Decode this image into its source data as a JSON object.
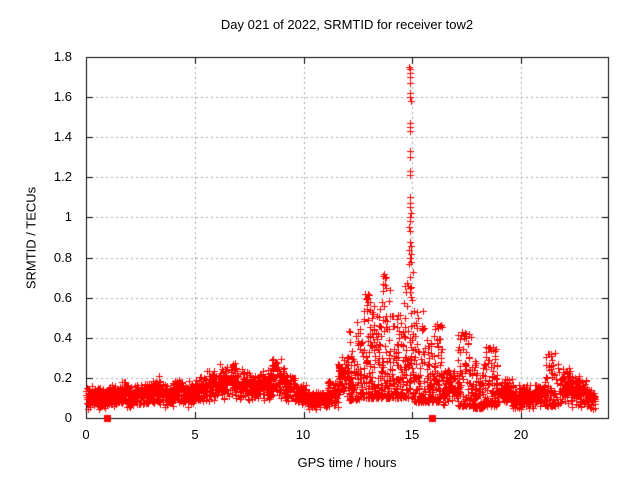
{
  "chart_data": {
    "type": "scatter",
    "title": "Day 021 of 2022, SRMTID for receiver tow2",
    "xlabel": "GPS time / hours",
    "ylabel": "SRMTID / TECUs",
    "xlim": [
      0,
      24
    ],
    "ylim": [
      0,
      1.8
    ],
    "xticks": [
      0,
      5,
      10,
      15,
      20
    ],
    "yticks": [
      0,
      0.2,
      0.4,
      0.6,
      0.8,
      1,
      1.2,
      1.4,
      1.6,
      1.8
    ],
    "xtick_labels": [
      "0",
      "5",
      "10",
      "15",
      "20"
    ],
    "ytick_labels": [
      "0",
      "0.2",
      "0.4",
      "0.6",
      "0.8",
      "1",
      "1.2",
      "1.4",
      "1.6",
      "1.8"
    ],
    "grid": true,
    "legend": "none",
    "colors": {
      "points": "#ff0000",
      "grid": "#a8a8a8",
      "frame": "#000000",
      "text": "#000000",
      "background": "#ffffff"
    },
    "seed": 20220121,
    "series": [
      {
        "name": "SRMTID",
        "marker": "plus",
        "envelope_bins_format": [
          "hour_start",
          "hour_end",
          "y_min",
          "y_max",
          "n_points"
        ],
        "envelope_bins": [
          [
            0.0,
            0.5,
            0.04,
            0.17,
            70
          ],
          [
            0.5,
            1.0,
            0.04,
            0.16,
            70
          ],
          [
            1.0,
            1.5,
            0.05,
            0.17,
            70
          ],
          [
            1.5,
            2.0,
            0.05,
            0.19,
            70
          ],
          [
            2.0,
            2.5,
            0.05,
            0.17,
            70
          ],
          [
            2.5,
            3.0,
            0.06,
            0.18,
            70
          ],
          [
            3.0,
            3.5,
            0.06,
            0.22,
            70
          ],
          [
            3.5,
            4.0,
            0.05,
            0.18,
            70
          ],
          [
            4.0,
            4.5,
            0.06,
            0.21,
            70
          ],
          [
            4.5,
            5.0,
            0.05,
            0.19,
            70
          ],
          [
            5.0,
            5.5,
            0.07,
            0.21,
            70
          ],
          [
            5.5,
            6.0,
            0.07,
            0.25,
            70
          ],
          [
            6.0,
            6.5,
            0.08,
            0.29,
            70
          ],
          [
            6.5,
            7.0,
            0.09,
            0.3,
            70
          ],
          [
            7.0,
            7.5,
            0.08,
            0.26,
            70
          ],
          [
            7.5,
            8.0,
            0.08,
            0.23,
            70
          ],
          [
            8.0,
            8.5,
            0.08,
            0.26,
            70
          ],
          [
            8.5,
            9.1,
            0.09,
            0.31,
            80
          ],
          [
            9.1,
            9.6,
            0.07,
            0.22,
            70
          ],
          [
            9.6,
            10.1,
            0.06,
            0.18,
            70
          ],
          [
            10.1,
            10.6,
            0.04,
            0.15,
            70
          ],
          [
            10.6,
            11.1,
            0.04,
            0.14,
            70
          ],
          [
            11.1,
            11.6,
            0.05,
            0.19,
            70
          ],
          [
            11.6,
            12.1,
            0.07,
            0.32,
            70
          ],
          [
            12.1,
            12.6,
            0.09,
            0.48,
            75
          ],
          [
            12.6,
            13.1,
            0.1,
            0.62,
            80
          ],
          [
            13.1,
            13.6,
            0.1,
            0.56,
            80
          ],
          [
            13.6,
            14.1,
            0.1,
            0.72,
            80
          ],
          [
            14.1,
            14.6,
            0.1,
            0.52,
            75
          ],
          [
            14.6,
            15.05,
            0.1,
            0.76,
            70
          ],
          [
            15.05,
            15.55,
            0.08,
            0.54,
            70
          ],
          [
            15.55,
            16.0,
            0.08,
            0.4,
            65
          ],
          [
            16.0,
            16.4,
            0.08,
            0.48,
            55
          ],
          [
            16.4,
            17.1,
            0.05,
            0.26,
            90
          ],
          [
            17.1,
            17.7,
            0.06,
            0.44,
            80
          ],
          [
            17.7,
            18.25,
            0.05,
            0.31,
            75
          ],
          [
            18.25,
            18.95,
            0.06,
            0.36,
            95
          ],
          [
            18.95,
            19.6,
            0.05,
            0.2,
            85
          ],
          [
            19.6,
            20.6,
            0.04,
            0.17,
            135
          ],
          [
            20.6,
            21.1,
            0.05,
            0.19,
            70
          ],
          [
            21.1,
            21.75,
            0.06,
            0.33,
            90
          ],
          [
            21.75,
            22.35,
            0.05,
            0.26,
            80
          ],
          [
            22.35,
            23.0,
            0.04,
            0.22,
            90
          ],
          [
            23.0,
            23.4,
            0.04,
            0.15,
            55
          ]
        ],
        "high_points": [
          [
            14.87,
            1.75
          ],
          [
            14.9,
            1.74
          ],
          [
            14.88,
            1.72
          ],
          [
            14.91,
            1.7
          ],
          [
            14.89,
            1.67
          ],
          [
            14.88,
            1.62
          ],
          [
            14.9,
            1.6
          ],
          [
            14.92,
            1.58
          ],
          [
            14.88,
            1.47
          ],
          [
            14.91,
            1.45
          ],
          [
            14.9,
            1.43
          ],
          [
            14.89,
            1.33
          ],
          [
            14.9,
            1.3
          ],
          [
            14.88,
            1.23
          ],
          [
            14.91,
            1.21
          ],
          [
            14.9,
            1.1
          ],
          [
            14.89,
            1.07
          ],
          [
            14.9,
            1.05
          ],
          [
            14.92,
            1.02
          ],
          [
            14.88,
            1.0
          ],
          [
            14.9,
            0.98
          ],
          [
            14.87,
            0.95
          ],
          [
            14.91,
            0.93
          ],
          [
            14.9,
            0.88
          ],
          [
            14.93,
            0.86
          ],
          [
            14.86,
            0.84
          ],
          [
            14.92,
            0.82
          ],
          [
            14.9,
            0.8
          ],
          [
            14.95,
            0.78
          ],
          [
            14.84,
            0.77
          ],
          [
            13.7,
            0.72
          ],
          [
            13.75,
            0.7
          ],
          [
            13.65,
            0.67
          ],
          [
            13.8,
            0.65
          ],
          [
            12.85,
            0.62
          ],
          [
            12.9,
            0.6
          ],
          [
            12.95,
            0.58
          ],
          [
            14.65,
            0.66
          ],
          [
            14.7,
            0.63
          ],
          [
            15.2,
            0.53
          ],
          [
            15.28,
            0.5
          ],
          [
            16.12,
            0.47
          ],
          [
            16.2,
            0.45
          ],
          [
            17.3,
            0.43
          ],
          [
            17.42,
            0.41
          ],
          [
            18.5,
            0.35
          ],
          [
            18.6,
            0.34
          ],
          [
            21.3,
            0.32
          ],
          [
            21.4,
            0.31
          ]
        ]
      },
      {
        "name": "axis-square-markers",
        "marker": "filled-square",
        "points": [
          [
            0.97,
            0
          ],
          [
            15.9,
            0
          ]
        ]
      }
    ]
  }
}
